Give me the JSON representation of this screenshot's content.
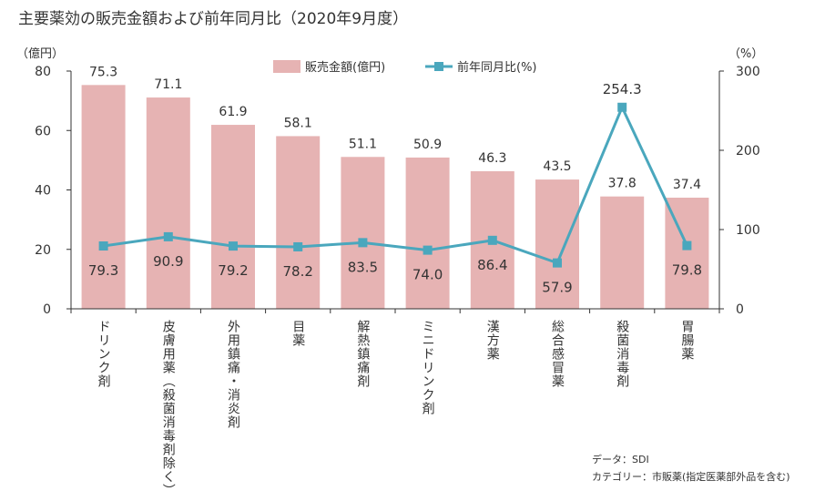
{
  "chart_data": {
    "type": "bar",
    "title": "主要薬効の販売金額および前年同月比（2020年9月度）",
    "left_axis_unit": "（億円）",
    "right_axis_unit": "（%）",
    "categories": [
      "ドリンク剤",
      "皮膚用薬（殺菌消毒剤除く）",
      "外用鎮痛・消炎剤",
      "目薬",
      "解熱鎮痛剤",
      "ミニドリンク剤",
      "漢方薬",
      "総合感冒薬",
      "殺菌消毒剤",
      "胃腸薬"
    ],
    "series": [
      {
        "name": "販売金額(億円)",
        "type": "bar",
        "axis": "left",
        "color": "#e6b3b3",
        "values": [
          75.3,
          71.1,
          61.9,
          58.1,
          51.1,
          50.9,
          46.3,
          43.5,
          37.8,
          37.4
        ]
      },
      {
        "name": "前年同月比(%)",
        "type": "line",
        "axis": "right",
        "color": "#4aa7bd",
        "values": [
          79.3,
          90.9,
          79.2,
          78.2,
          83.5,
          74.0,
          86.4,
          57.9,
          254.3,
          79.8
        ]
      }
    ],
    "bar_labels": [
      "75.3",
      "71.1",
      "61.9",
      "58.1",
      "51.1",
      "50.9",
      "46.3",
      "43.5",
      "37.8",
      "37.4"
    ],
    "line_labels": [
      "79.3",
      "90.9",
      "79.2",
      "78.2",
      "83.5",
      "74.0",
      "86.4",
      "57.9",
      "254.3",
      "79.8"
    ],
    "left_ylim": [
      0,
      80
    ],
    "left_ticks": [
      "0",
      "20",
      "40",
      "60",
      "80"
    ],
    "right_ylim": [
      0,
      300
    ],
    "right_ticks": [
      "0",
      "100",
      "200",
      "300"
    ],
    "legend_position": "top-center",
    "grid": false
  },
  "notes": {
    "source": "データ：SDI",
    "category": "カテゴリー：市販薬(指定医薬部外品を含む)"
  }
}
